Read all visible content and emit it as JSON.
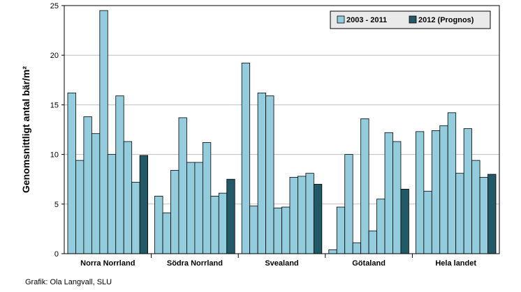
{
  "chart_data": {
    "type": "bar",
    "ylabel": "Genomsnittligt antal bär/m²",
    "xlabel": "",
    "ylim": [
      0,
      25
    ],
    "yticks": [
      0,
      5,
      10,
      15,
      20,
      25
    ],
    "grid": true,
    "legend_position": "top-right",
    "categories": [
      "Norra Norrland",
      "Södra Norrland",
      "Svealand",
      "Götaland",
      "Hela landet"
    ],
    "series": [
      {
        "name": "2003 - 2011",
        "color": "#93cddd",
        "values": [
          [
            16.2,
            9.4,
            13.8,
            12.1,
            24.5,
            10.0,
            15.9,
            11.3,
            7.2
          ],
          [
            5.8,
            4.1,
            8.4,
            13.7,
            9.2,
            9.2,
            11.2,
            5.8,
            6.1
          ],
          [
            19.2,
            4.8,
            16.2,
            15.9,
            4.6,
            4.7,
            7.7,
            7.8,
            8.1
          ],
          [
            0.4,
            4.7,
            10.0,
            1.1,
            13.6,
            2.3,
            5.5,
            12.2,
            11.3
          ],
          [
            12.3,
            6.3,
            12.4,
            12.9,
            14.2,
            8.1,
            12.6,
            9.4,
            7.7
          ]
        ]
      },
      {
        "name": "2012 (Prognos)",
        "color": "#215967",
        "values": [
          9.9,
          7.5,
          7.0,
          6.5,
          8.0
        ]
      }
    ]
  },
  "credit": "Grafik: Ola Langvall, SLU"
}
